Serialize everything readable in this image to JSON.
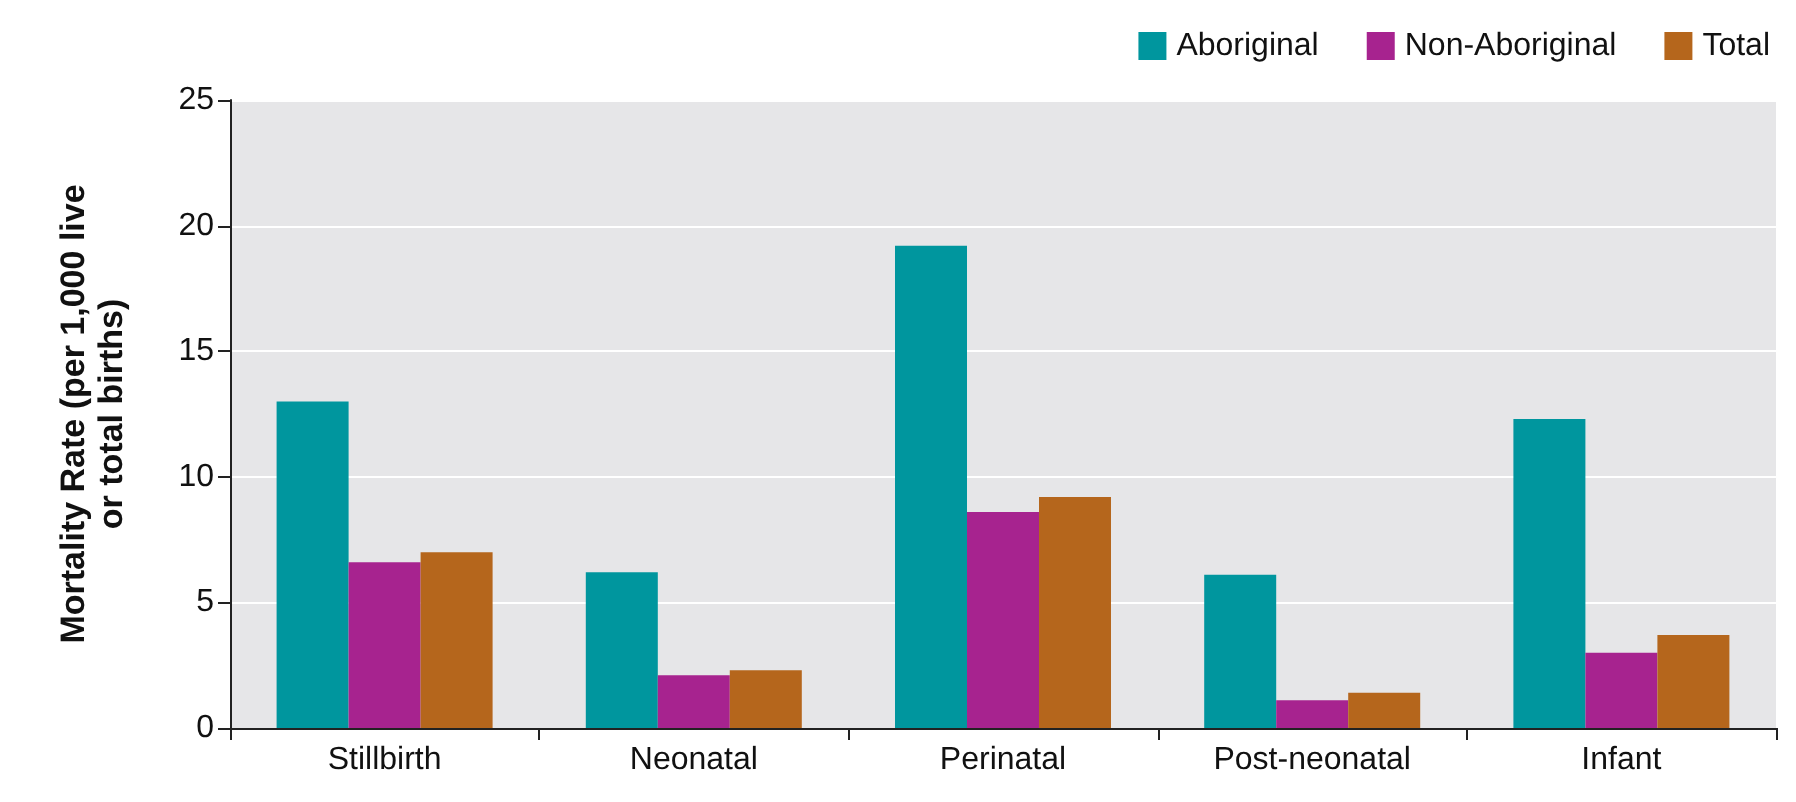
{
  "chart_data": {
    "type": "bar",
    "ylabel": "Mortality Rate (per 1,000 live\nor total births)",
    "categories": [
      "Stillbirth",
      "Neonatal",
      "Perinatal",
      "Post-neonatal",
      "Infant"
    ],
    "series": [
      {
        "name": "Aboriginal",
        "color": "#00969e",
        "values": [
          13.0,
          6.2,
          19.2,
          6.1,
          12.3
        ]
      },
      {
        "name": "Non-Aboriginal",
        "color": "#a7238f",
        "values": [
          6.6,
          2.1,
          8.6,
          1.1,
          3.0
        ]
      },
      {
        "name": "Total",
        "color": "#b5661c",
        "values": [
          7.0,
          2.3,
          9.2,
          1.4,
          3.7
        ]
      }
    ],
    "ylim": [
      0,
      25
    ],
    "yticks": [
      0,
      5,
      10,
      15,
      20,
      25
    ],
    "grid": "y",
    "legend": "top right"
  }
}
